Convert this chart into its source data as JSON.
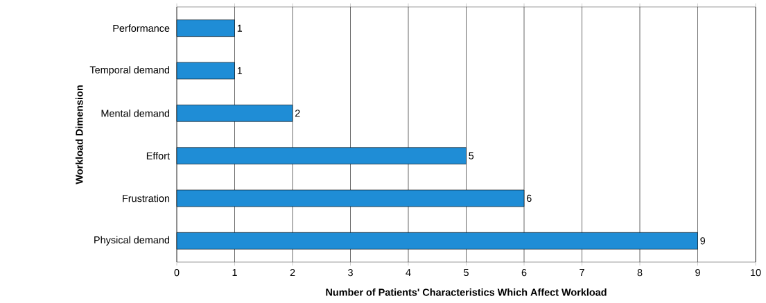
{
  "chart_data": {
    "type": "bar",
    "orientation": "horizontal",
    "xlabel": "Number of Patients' Characteristics Which Affect Workload",
    "ylabel": "Workload Dimension",
    "categories": [
      "Performance",
      "Temporal demand",
      "Mental demand",
      "Effort",
      "Frustration",
      "Physical demand"
    ],
    "values": [
      1,
      1,
      2,
      5,
      6,
      9
    ],
    "color": "#1f8dd6",
    "xlim": [
      0,
      10
    ],
    "xticks": [
      0,
      1,
      2,
      3,
      4,
      5,
      6,
      7,
      8,
      9,
      10
    ],
    "grid": "x",
    "data_labels": true
  }
}
